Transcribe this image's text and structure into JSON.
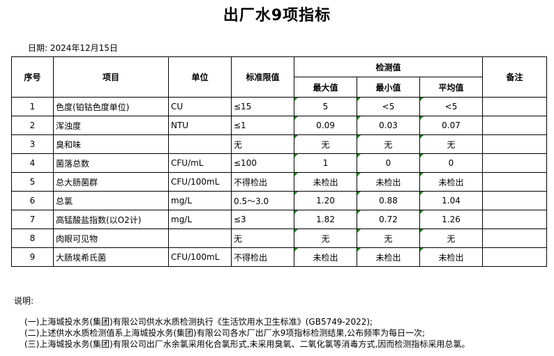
{
  "title": "出厂水9项指标",
  "date": "日期: 2024年12月15日",
  "headers": {
    "no": "序号",
    "item": "项目",
    "unit": "单位",
    "limit": "标准限值",
    "measured": "检测值",
    "max": "最大值",
    "min": "最小值",
    "avg": "平均值",
    "remark": "备注"
  },
  "rows": [
    {
      "no": "1",
      "item": "色度(铂钴色度单位)",
      "unit": "CU",
      "limit": "≤15",
      "max": "5",
      "min": "<5",
      "avg": "<5"
    },
    {
      "no": "2",
      "item": "浑浊度",
      "unit": "NTU",
      "limit": "≤1",
      "max": "0.09",
      "min": "0.03",
      "avg": "0.07"
    },
    {
      "no": "3",
      "item": "臭和味",
      "unit": "",
      "limit": "无",
      "max": "无",
      "min": "无",
      "avg": "无"
    },
    {
      "no": "4",
      "item": "菌落总数",
      "unit": "CFU/mL",
      "limit": "≤100",
      "max": "1",
      "min": "0",
      "avg": "0"
    },
    {
      "no": "5",
      "item": "总大肠菌群",
      "unit": "CFU/100mL",
      "limit": "不得检出",
      "max": "未检出",
      "min": "未检出",
      "avg": "未检出"
    },
    {
      "no": "6",
      "item": "总氯",
      "unit": "mg/L",
      "limit": "0.5～3.0",
      "max": "1.20",
      "min": "0.88",
      "avg": "1.04"
    },
    {
      "no": "7",
      "item": "高锰酸盐指数(以O2计)",
      "unit": "mg/L",
      "limit": "≤3",
      "max": "1.82",
      "min": "0.72",
      "avg": "1.26"
    },
    {
      "no": "8",
      "item": "肉眼可见物",
      "unit": "",
      "limit": "无",
      "max": "无",
      "min": "无",
      "avg": "无"
    },
    {
      "no": "9",
      "item": "大肠埃希氏菌",
      "unit": "CFU/100mL",
      "limit": "不得检出",
      "max": "未检出",
      "min": "未检出",
      "avg": "未检出"
    }
  ],
  "notes": {
    "label": "说明:",
    "items": [
      "(一)上海城投水务(集团)有限公司供水水质检测执行《生活饮用水卫生标准》(GB5749-2022);",
      "(二)上述供水水质检测值系上海城投水务(集团)有限公司各水厂出厂水9项指标检测结果,公布频率为每日一次;",
      "(三)上海城投水务(集团)有限公司出厂水余氯采用化合氯形式,未采用臭氧、二氧化氯等消毒方式,因而检测指标采用总氯。"
    ]
  }
}
